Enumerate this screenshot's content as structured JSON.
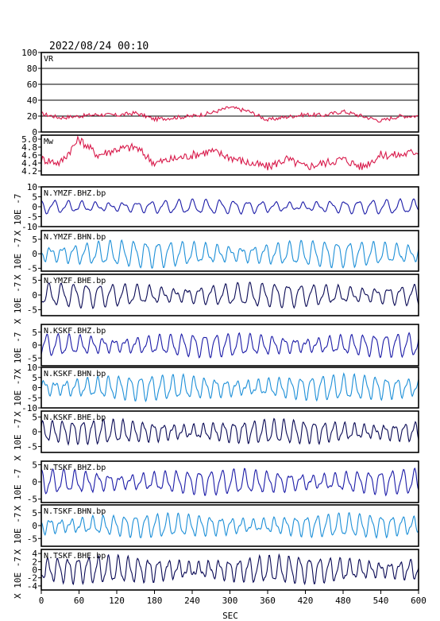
{
  "chart_data": {
    "type": "line",
    "title": "2022/08/24 00:10",
    "xlabel": "SEC",
    "xlim": [
      0,
      600
    ],
    "xticks": [
      "0",
      "60",
      "120",
      "180",
      "240",
      "300",
      "360",
      "420",
      "480",
      "540",
      "600"
    ],
    "ylabel": "X 10E -7",
    "grid": true,
    "panels": [
      {
        "label": "VR",
        "ylim": [
          0,
          100
        ],
        "yticks": [
          "0",
          "20",
          "40",
          "60",
          "80",
          "100"
        ],
        "gridlines": [
          20,
          40,
          60,
          80
        ],
        "color": "#d8194a",
        "x": [
          0,
          30,
          60,
          90,
          120,
          150,
          180,
          210,
          240,
          270,
          300,
          330,
          360,
          390,
          420,
          450,
          480,
          510,
          540,
          570,
          600
        ],
        "values": [
          23,
          18,
          20,
          22,
          21,
          24,
          16,
          18,
          20,
          24,
          31,
          26,
          15,
          19,
          22,
          21,
          26,
          20,
          14,
          20,
          20
        ]
      },
      {
        "label": "Mw",
        "ylim": [
          4.1,
          5.1
        ],
        "yticks": [
          "4.2",
          "4.4",
          "4.6",
          "4.8",
          "5.0"
        ],
        "gridlines": [],
        "color": "#d8194a",
        "x": [
          0,
          30,
          60,
          90,
          120,
          150,
          180,
          210,
          240,
          270,
          300,
          330,
          360,
          390,
          420,
          450,
          480,
          510,
          540,
          570,
          600
        ],
        "values": [
          4.5,
          4.4,
          5.0,
          4.6,
          4.75,
          4.8,
          4.4,
          4.5,
          4.6,
          4.7,
          4.55,
          4.4,
          4.3,
          4.5,
          4.3,
          4.4,
          4.5,
          4.3,
          4.6,
          4.6,
          4.7
        ]
      },
      {
        "label": "N.YMZF.BHZ.bp",
        "ylim": [
          -10,
          10
        ],
        "yticks": [
          "-10",
          "-5",
          "0",
          "5",
          "10"
        ],
        "color": "#1c1ca8",
        "amp": 3.2,
        "period": 22
      },
      {
        "label": "N.YMZF.BHN.bp",
        "ylim": [
          -6,
          8
        ],
        "yticks": [
          "-5",
          "0",
          "5"
        ],
        "color": "#1e90d8",
        "amp": 4.0,
        "period": 19
      },
      {
        "label": "N.YMZF.BHE.bp",
        "ylim": [
          -7,
          7
        ],
        "yticks": [
          "-5",
          "0",
          "5"
        ],
        "color": "#0a0a55",
        "amp": 3.6,
        "period": 20
      },
      {
        "label": "N.KSKF.BHZ.bp",
        "ylim": [
          -8,
          8
        ],
        "yticks": [
          "-5",
          "0",
          "5"
        ],
        "color": "#1c1ca8",
        "amp": 4.0,
        "period": 18
      },
      {
        "label": "N.KSKF.BHN.bp",
        "ylim": [
          -10,
          10
        ],
        "yticks": [
          "-10",
          "-5",
          "0",
          "5",
          "10"
        ],
        "color": "#1e90d8",
        "amp": 5.5,
        "period": 17
      },
      {
        "label": "N.KSKF.BHE.bp",
        "ylim": [
          -7,
          7
        ],
        "yticks": [
          "-5",
          "0",
          "5"
        ],
        "color": "#0a0a55",
        "amp": 3.6,
        "period": 16
      },
      {
        "label": "N.TSKF.BHZ.bp",
        "ylim": [
          -6,
          6
        ],
        "yticks": [
          "-5",
          "0",
          "5"
        ],
        "color": "#1c1ca8",
        "amp": 3.2,
        "period": 18
      },
      {
        "label": "N.TSKF.BHN.bp",
        "ylim": [
          -8,
          8
        ],
        "yticks": [
          "-5",
          "0",
          "5"
        ],
        "color": "#1e90d8",
        "amp": 4.0,
        "period": 17
      },
      {
        "label": "N.TSKF.BHE.bp",
        "ylim": [
          -5,
          5
        ],
        "yticks": [
          "-4",
          "-2",
          "0",
          "2",
          "4"
        ],
        "color": "#0a0a55",
        "amp": 3.0,
        "period": 16
      }
    ]
  }
}
